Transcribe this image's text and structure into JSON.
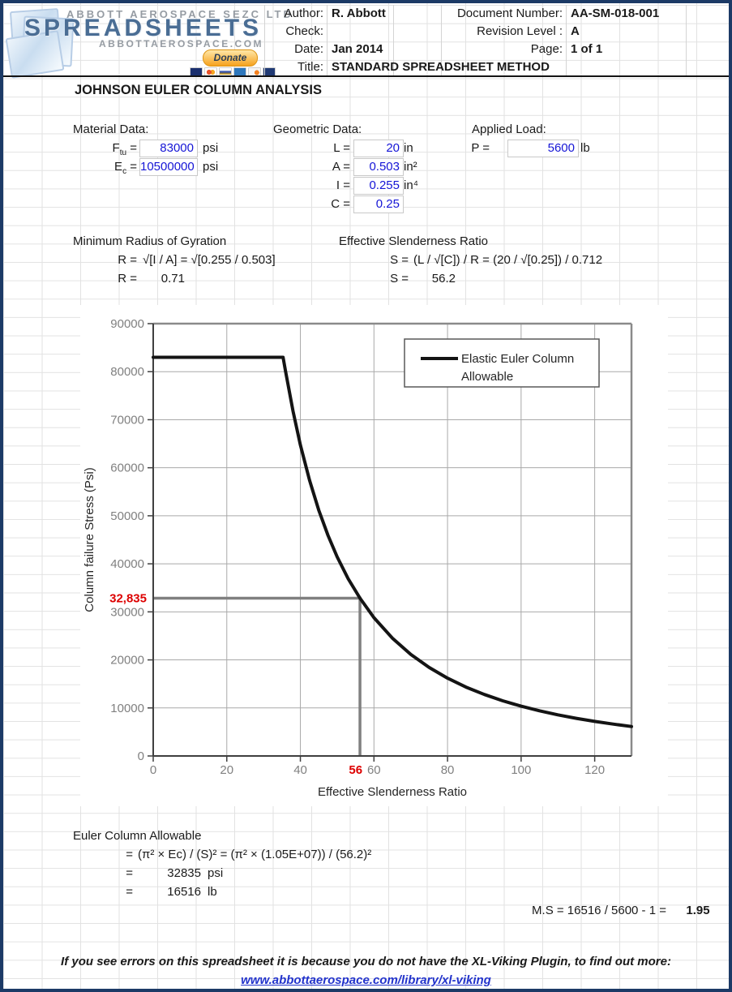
{
  "header": {
    "logo": {
      "tagline_top": "ABBOTT AEROSPACE SEZC LTD",
      "brand": "SPREADSHEETS",
      "tagline_bottom": "ABBOTTAEROSPACE.COM",
      "donate_label": "Donate"
    },
    "fields": {
      "author_label": "Author:",
      "author_value": "R. Abbott",
      "check_label": "Check:",
      "check_value": "",
      "date_label": "Date:",
      "date_value": "Jan 2014",
      "title_label": "Title:",
      "title_value": "STANDARD SPREADSHEET METHOD",
      "doc_number_label": "Document Number:",
      "doc_number_value": "AA-SM-018-001",
      "revision_label": "Revision Level :",
      "revision_value": "A",
      "page_label": "Page:",
      "page_value": "1 of 1"
    }
  },
  "sheet": {
    "title": "JOHNSON EULER COLUMN ANALYSIS",
    "material": {
      "heading": "Material Data:",
      "rows": [
        {
          "base": "F",
          "sub": "tu",
          "eq": "=",
          "value": "83000",
          "unit": "psi"
        },
        {
          "base": "E",
          "sub": "c",
          "eq": "=",
          "value": "10500000",
          "unit": "psi"
        }
      ]
    },
    "geometric": {
      "heading": "Geometric Data:",
      "rows": [
        {
          "label": "L =",
          "value": "20",
          "unit": "in"
        },
        {
          "label": "A =",
          "value": "0.503",
          "unit": "in²"
        },
        {
          "label": "I =",
          "value": "0.255",
          "unit": "in⁴"
        },
        {
          "label": "C =",
          "value": "0.25",
          "unit": ""
        }
      ]
    },
    "applied": {
      "heading": "Applied Load:",
      "rows": [
        {
          "label": "P =",
          "value": "5600",
          "unit": "lb"
        }
      ]
    },
    "gyration": {
      "heading": "Minimum Radius of Gyration",
      "formula_label": "R =",
      "formula": "√[I / A] = √[0.255 / 0.503]",
      "result_label": "R =",
      "result": "0.71"
    },
    "slenderness": {
      "heading": "Effective Slenderness Ratio",
      "formula_label": "S =",
      "formula": "(L / √[C]) / R = (20 / √[0.25]) / 0.712",
      "result_label": "S =",
      "result": "56.2"
    },
    "euler": {
      "heading": "Euler Column Allowable",
      "formula_eq": "=",
      "formula": "(π² × Ec) / (S)² = (π² × (1.05E+07)) / (56.2)²",
      "rows": [
        {
          "eq": "=",
          "value": "32835",
          "unit": "psi"
        },
        {
          "eq": "=",
          "value": "16516",
          "unit": "lb"
        }
      ]
    },
    "margin": {
      "expression": "M.S = 16516 / 5600 - 1 =",
      "value": "1.95"
    }
  },
  "footer": {
    "notice": "If you see errors on this spreadsheet it is because you do not have the XL-Viking Plugin, to find out more:",
    "link": "www.abbottaerospace.com/library/xl-viking"
  },
  "chart_data": {
    "type": "line",
    "title": "",
    "xlabel": "Effective Slenderness Ratio",
    "ylabel": "Column failure Stress (Psi)",
    "xlim": [
      0,
      130
    ],
    "ylim": [
      0,
      90000
    ],
    "xticks": [
      0,
      20,
      40,
      60,
      80,
      100,
      120
    ],
    "yticks": [
      0,
      10000,
      20000,
      30000,
      40000,
      50000,
      60000,
      70000,
      80000,
      90000
    ],
    "grid": true,
    "legend": {
      "position": "top-right",
      "entries": [
        "Elastic Euler Column",
        "Allowable"
      ]
    },
    "series": [
      {
        "name": "Elastic Euler Column Allowable",
        "color": "#141414",
        "x": [
          0,
          35.3,
          36,
          38,
          40,
          42.5,
          45,
          47.5,
          50,
          53,
          56.2,
          60,
          65,
          70,
          75,
          80,
          85,
          90,
          95,
          100,
          105,
          110,
          115,
          120,
          125,
          130
        ],
        "y": [
          83000,
          83000,
          79960,
          71767,
          64769,
          57374,
          51176,
          45931,
          41452,
          36893,
          32835,
          28786,
          24528,
          21149,
          18423,
          16192,
          14343,
          12794,
          11483,
          10363,
          9400,
          8565,
          7836,
          7196,
          6632,
          6132
        ]
      }
    ],
    "annotation": {
      "x": 56.2,
      "y": 32835,
      "x_label": "56",
      "y_label": "32,835",
      "label_color": "#dd0000",
      "line_color": "#808080"
    }
  }
}
